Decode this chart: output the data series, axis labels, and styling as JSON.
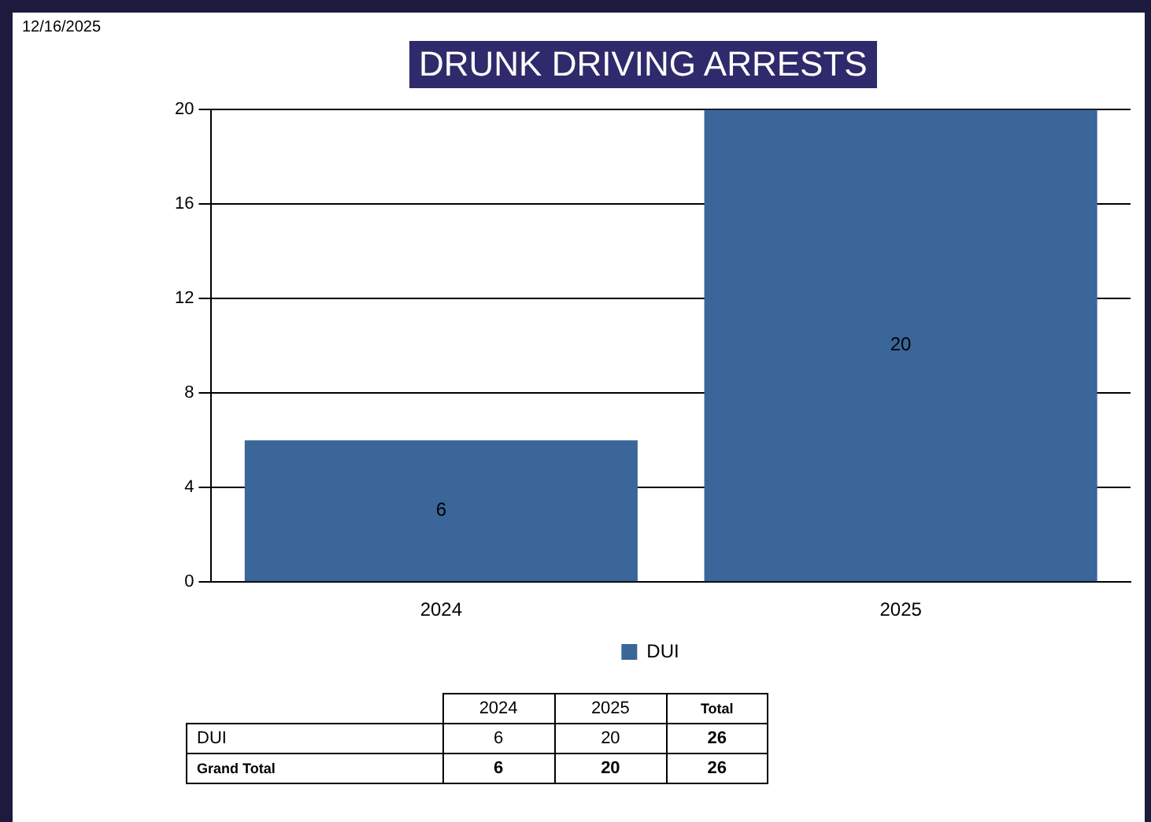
{
  "chart_data": {
    "type": "bar",
    "title": "DRUNK DRIVING ARRESTS",
    "categories": [
      "2024",
      "2025"
    ],
    "series": [
      {
        "name": "DUI",
        "color": "#3a6699",
        "values": [
          6,
          20
        ]
      }
    ],
    "ylim": [
      0,
      20
    ],
    "yticks": [
      0,
      4,
      8,
      12,
      16,
      20
    ],
    "grid": "y",
    "legend": "bottom",
    "data_labels": true,
    "annotations": [
      "12/16/2025",
      "Total",
      "6",
      "20",
      "26",
      "Grand Total",
      "6",
      "20",
      "26"
    ]
  }
}
